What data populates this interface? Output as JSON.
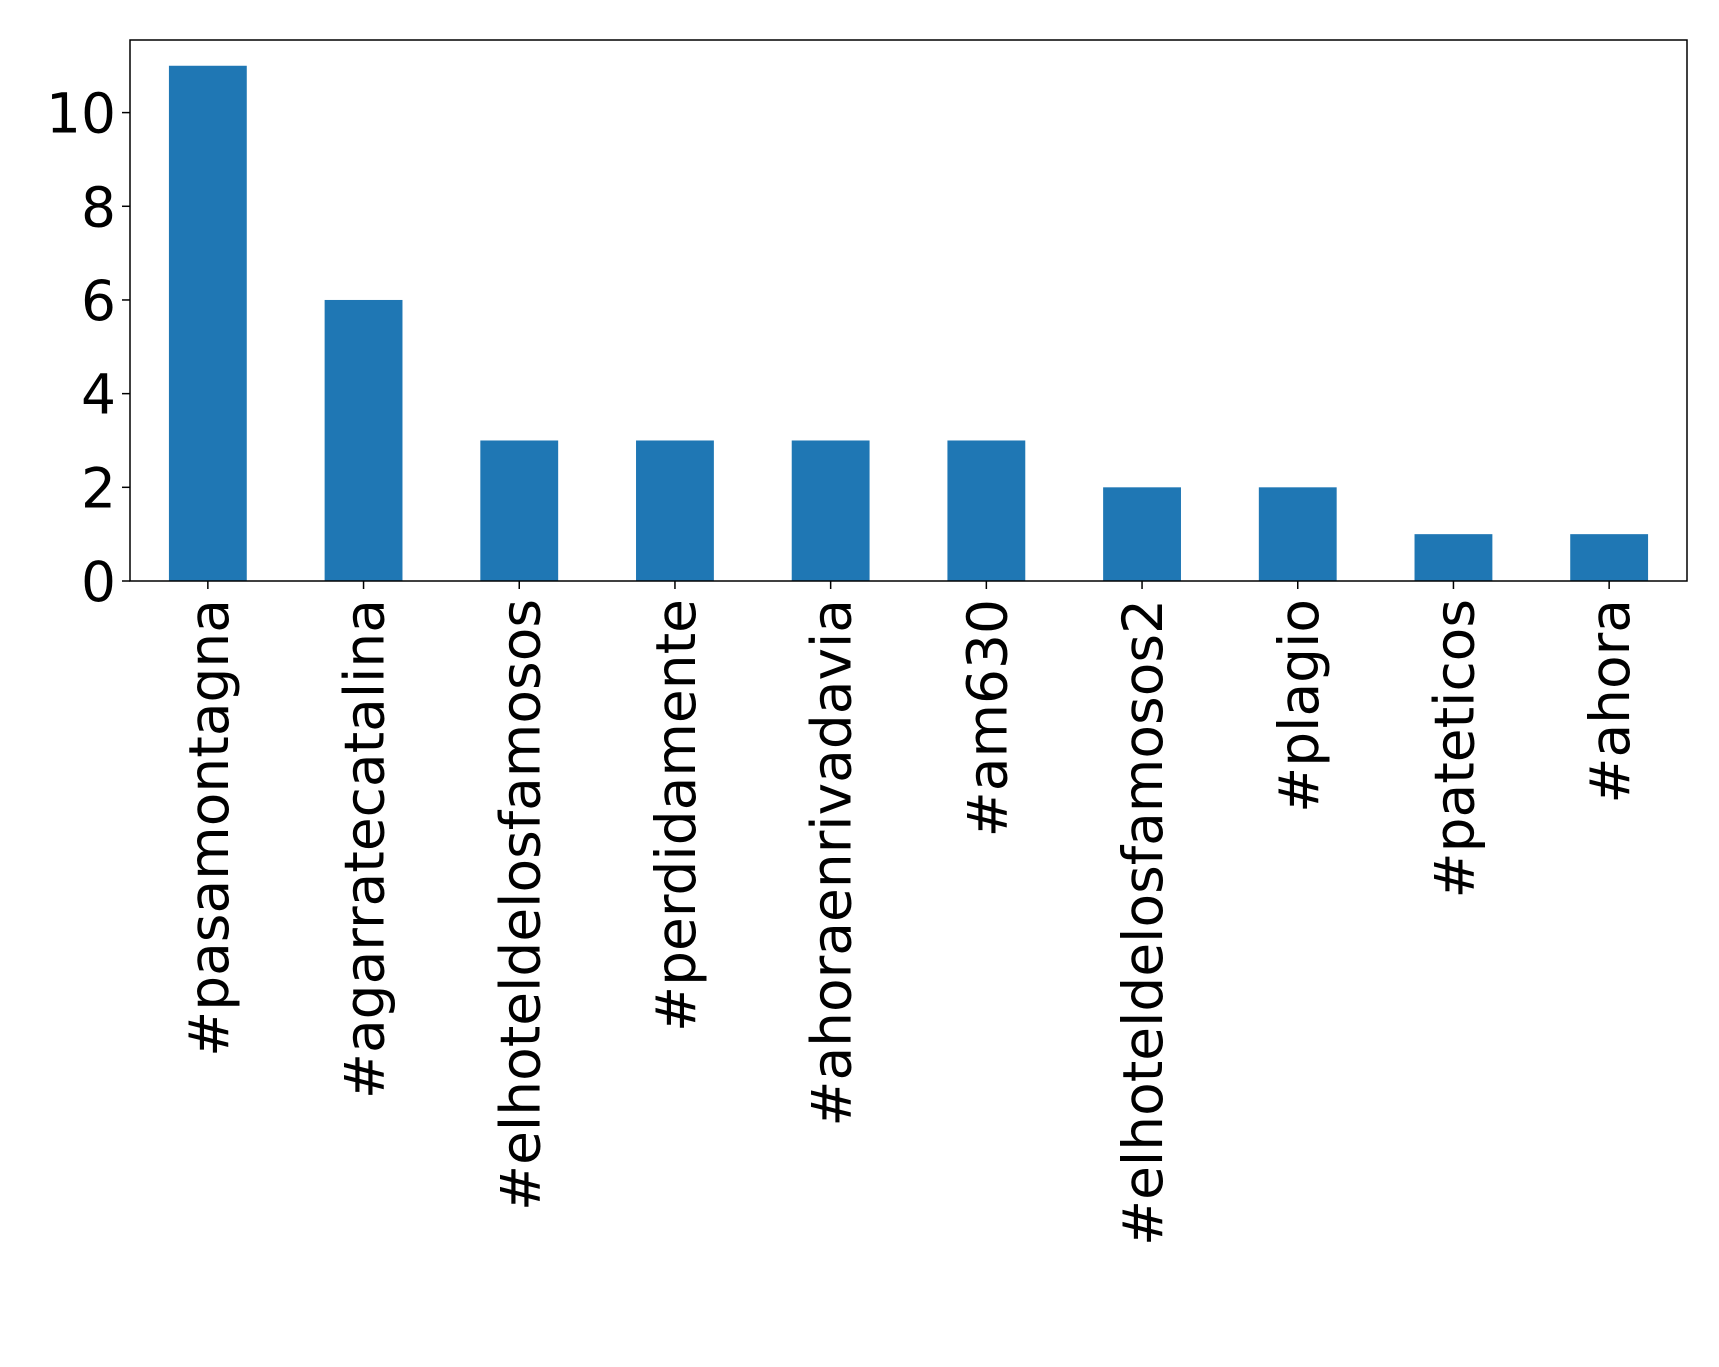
{
  "chart_data": {
    "type": "bar",
    "categories": [
      "#pasamontagna",
      "#agarratecatalina",
      "#elhoteldelosfamosos",
      "#perdidamente",
      "#ahoraenrivadavia",
      "#am630",
      "#elhoteldelosfamosos2",
      "#plagio",
      "#pateticos",
      "#ahora"
    ],
    "values": [
      11,
      6,
      3,
      3,
      3,
      3,
      2,
      2,
      1,
      1
    ],
    "color": "#1f77b4",
    "ylim": [
      0,
      11.55
    ],
    "yticks": [
      0,
      2,
      4,
      6,
      8,
      10
    ],
    "grid": false
  }
}
